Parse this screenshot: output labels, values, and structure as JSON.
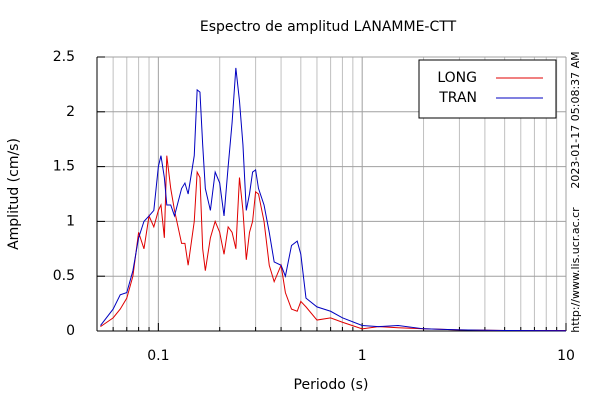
{
  "chart_data": {
    "type": "line",
    "title": "Espectro de amplitud LANAMME-CTT",
    "x_label": "Periodo (s)",
    "y_label": "Amplitud (cm/s)",
    "side_texts": [
      "2023-01-17 05:08:37 AM",
      "http://www.lis.ucr.ac.cr"
    ],
    "x_log": true,
    "grid": true,
    "legend": "top-right",
    "xlim": [
      0.05,
      10
    ],
    "ylim": [
      0,
      2.5
    ],
    "xticks": [
      0.1,
      1,
      10
    ],
    "xminorticks": [
      0.06,
      0.07,
      0.08,
      0.09,
      0.2,
      0.3,
      0.4,
      0.5,
      0.6,
      0.7,
      0.8,
      0.9,
      2,
      3,
      4,
      5,
      6,
      7,
      8,
      9
    ],
    "yticks": [
      0,
      0.5,
      1,
      1.5,
      2,
      2.5
    ],
    "x": [
      0.052,
      0.06,
      0.065,
      0.07,
      0.075,
      0.08,
      0.085,
      0.09,
      0.095,
      0.1,
      0.103,
      0.107,
      0.11,
      0.115,
      0.12,
      0.13,
      0.135,
      0.14,
      0.15,
      0.155,
      0.16,
      0.165,
      0.17,
      0.18,
      0.19,
      0.2,
      0.21,
      0.22,
      0.23,
      0.24,
      0.25,
      0.26,
      0.27,
      0.28,
      0.29,
      0.3,
      0.31,
      0.33,
      0.35,
      0.37,
      0.4,
      0.42,
      0.45,
      0.48,
      0.5,
      0.53,
      0.6,
      0.7,
      0.8,
      1.0,
      1.2,
      1.5,
      2,
      3,
      5,
      10
    ],
    "series": [
      {
        "name": "LONG",
        "color": "#e00000",
        "values": [
          0.04,
          0.12,
          0.2,
          0.3,
          0.5,
          0.9,
          0.75,
          1.05,
          0.95,
          1.1,
          1.15,
          0.85,
          1.6,
          1.3,
          1.1,
          0.8,
          0.8,
          0.6,
          1.0,
          1.45,
          1.4,
          0.75,
          0.55,
          0.85,
          1.0,
          0.9,
          0.7,
          0.95,
          0.9,
          0.75,
          1.4,
          1.1,
          0.65,
          0.9,
          1.0,
          1.27,
          1.25,
          1.0,
          0.6,
          0.45,
          0.6,
          0.35,
          0.2,
          0.18,
          0.27,
          0.22,
          0.1,
          0.12,
          0.08,
          0.02,
          0.04,
          0.03,
          0.02,
          0.01,
          0.005,
          0.004
        ]
      },
      {
        "name": "TRAN",
        "color": "#0000c0",
        "values": [
          0.05,
          0.2,
          0.33,
          0.35,
          0.55,
          0.85,
          1.0,
          1.05,
          1.1,
          1.5,
          1.6,
          1.4,
          1.15,
          1.15,
          1.05,
          1.3,
          1.35,
          1.25,
          1.6,
          2.2,
          2.18,
          1.7,
          1.3,
          1.1,
          1.45,
          1.35,
          1.05,
          1.5,
          1.9,
          2.4,
          2.1,
          1.7,
          1.1,
          1.25,
          1.45,
          1.47,
          1.3,
          1.15,
          0.9,
          0.63,
          0.6,
          0.5,
          0.78,
          0.82,
          0.7,
          0.3,
          0.22,
          0.18,
          0.12,
          0.05,
          0.04,
          0.05,
          0.02,
          0.01,
          0.005,
          0.002
        ]
      }
    ]
  }
}
